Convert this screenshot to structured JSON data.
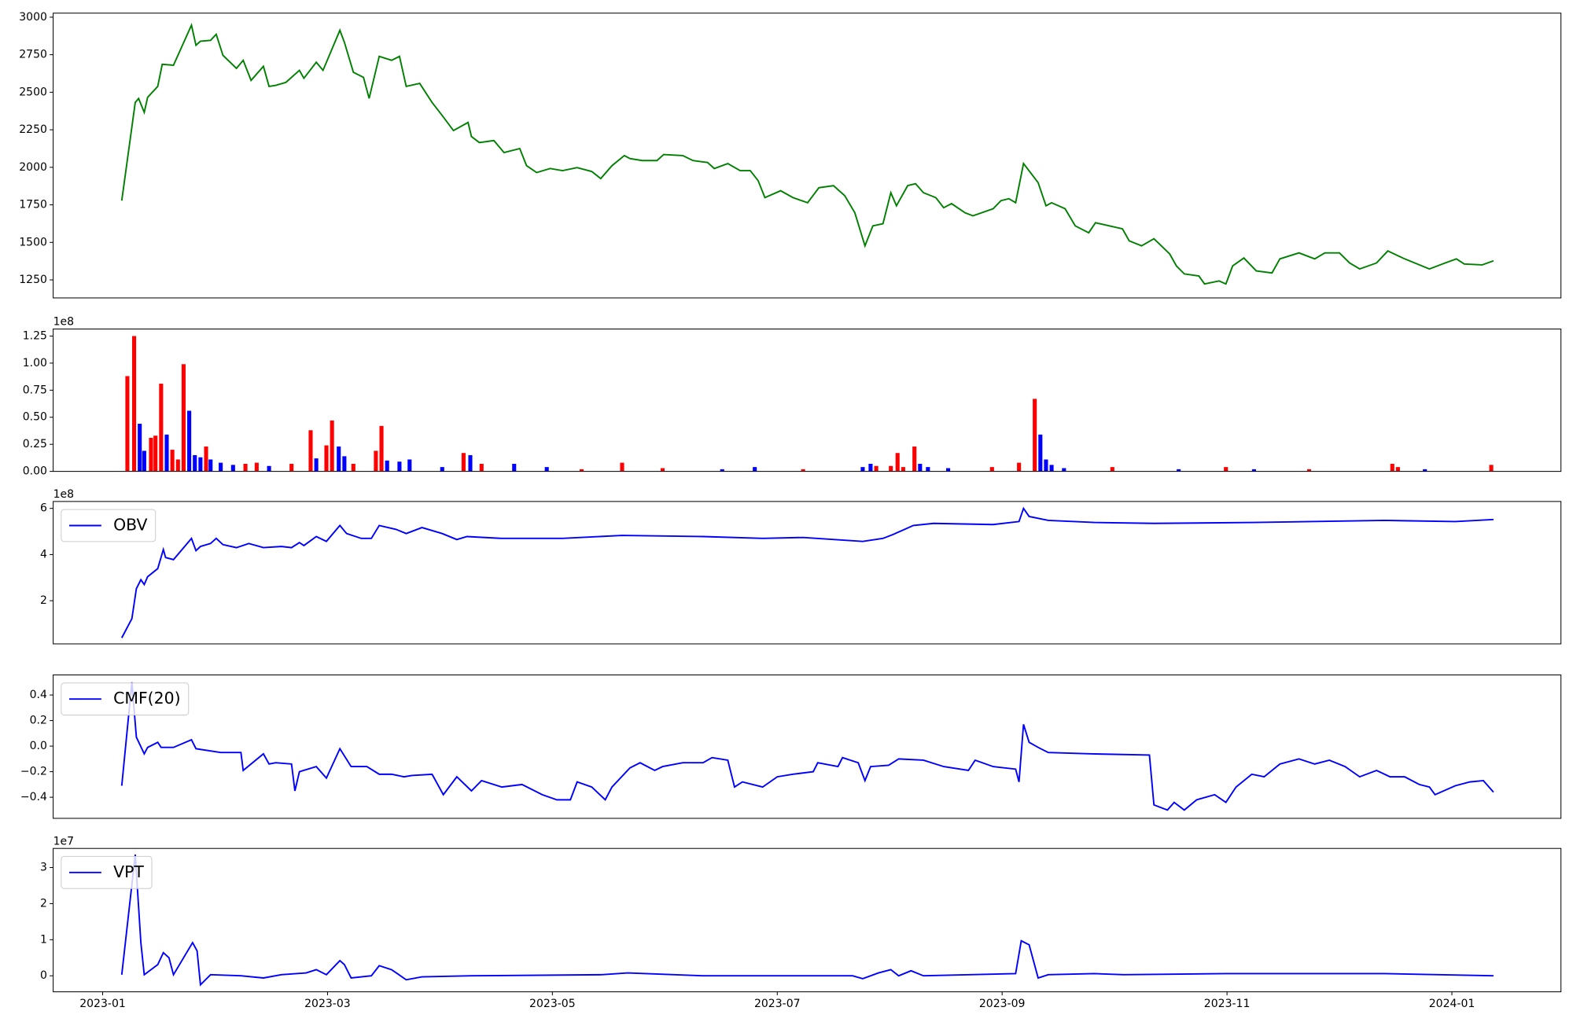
{
  "chart_data": [
    {
      "type": "line",
      "xlim": [
        -0.44,
        12.97
      ],
      "ylim": [
        1130,
        3027
      ],
      "yticks": [
        1250,
        1500,
        1750,
        2000,
        2250,
        2500,
        2750,
        3000
      ],
      "x": [
        0.17,
        0.29,
        0.32,
        0.37,
        0.4,
        0.49,
        0.53,
        0.63,
        0.79,
        0.83,
        0.87,
        0.96,
        1.01,
        1.07,
        1.19,
        1.25,
        1.32,
        1.43,
        1.48,
        1.54,
        1.63,
        1.75,
        1.79,
        1.9,
        1.96,
        2.11,
        2.15,
        2.23,
        2.32,
        2.37,
        2.46,
        2.57,
        2.64,
        2.7,
        2.82,
        2.93,
        3.02,
        3.12,
        3.25,
        3.28,
        3.35,
        3.48,
        3.57,
        3.71,
        3.77,
        3.86,
        3.98,
        4.09,
        4.22,
        4.35,
        4.43,
        4.53,
        4.64,
        4.69,
        4.8,
        4.93,
        4.99,
        5.16,
        5.25,
        5.38,
        5.44,
        5.56,
        5.67,
        5.76,
        5.83,
        5.89,
        6.03,
        6.14,
        6.27,
        6.37,
        6.5,
        6.6,
        6.69,
        6.78,
        6.85,
        6.94,
        7.01,
        7.06,
        7.16,
        7.23,
        7.3,
        7.41,
        7.48,
        7.55,
        7.67,
        7.74,
        7.92,
        7.99,
        8.06,
        8.12,
        8.19,
        8.32,
        8.39,
        8.44,
        8.56,
        8.65,
        8.77,
        8.83,
        9.07,
        9.13,
        9.24,
        9.35,
        9.49,
        9.55,
        9.62,
        9.75,
        9.8,
        9.93,
        9.99,
        10.05,
        10.15,
        10.26,
        10.4,
        10.47,
        10.64,
        10.78,
        10.87,
        11.0,
        11.09,
        11.18,
        11.33,
        11.43,
        11.58,
        11.8,
        11.94,
        12.04,
        12.11,
        12.27,
        12.37
      ],
      "series": [
        {
          "color": "#008000",
          "values": [
            1778,
            2432,
            2459,
            2366,
            2466,
            2539,
            2686,
            2680,
            2947,
            2813,
            2840,
            2846,
            2886,
            2746,
            2659,
            2713,
            2579,
            2673,
            2539,
            2546,
            2566,
            2646,
            2593,
            2700,
            2646,
            2913,
            2833,
            2633,
            2599,
            2459,
            2739,
            2713,
            2739,
            2539,
            2559,
            2432,
            2345,
            2245,
            2299,
            2205,
            2165,
            2178,
            2098,
            2125,
            2011,
            1965,
            1992,
            1978,
            1998,
            1972,
            1925,
            2011,
            2078,
            2058,
            2045,
            2045,
            2085,
            2078,
            2045,
            2032,
            1992,
            2025,
            1978,
            1978,
            1911,
            1798,
            1844,
            1798,
            1764,
            1864,
            1878,
            1811,
            1697,
            1477,
            1610,
            1624,
            1831,
            1744,
            1878,
            1891,
            1831,
            1798,
            1731,
            1758,
            1697,
            1677,
            1724,
            1778,
            1791,
            1764,
            2025,
            1898,
            1744,
            1764,
            1724,
            1610,
            1564,
            1631,
            1590,
            1510,
            1477,
            1524,
            1423,
            1343,
            1290,
            1276,
            1223,
            1243,
            1223,
            1343,
            1396,
            1310,
            1296,
            1390,
            1430,
            1390,
            1430,
            1430,
            1363,
            1323,
            1363,
            1443,
            1390,
            1323,
            1363,
            1390,
            1356,
            1350,
            1377
          ]
        }
      ]
    },
    {
      "type": "bar",
      "offset_text": "1e8",
      "xlim": [
        -0.44,
        12.97
      ],
      "ylim": [
        0,
        131500000
      ],
      "yticks": [
        {
          "value": 0,
          "label": "0.00"
        },
        {
          "value": 25000000,
          "label": "0.25"
        },
        {
          "value": 50000000,
          "label": "0.50"
        },
        {
          "value": 75000000,
          "label": "0.75"
        },
        {
          "value": 100000000,
          "label": "1.00"
        },
        {
          "value": 125000000,
          "label": "1.25"
        }
      ],
      "x": [
        0.22,
        0.28,
        0.33,
        0.37,
        0.43,
        0.47,
        0.52,
        0.57,
        0.62,
        0.67,
        0.72,
        0.77,
        0.82,
        0.87,
        0.92,
        0.96,
        1.05,
        1.16,
        1.27,
        1.37,
        1.48,
        1.68,
        1.85,
        1.9,
        1.99,
        2.04,
        2.1,
        2.15,
        2.23,
        2.43,
        2.48,
        2.53,
        2.64,
        2.73,
        3.02,
        3.21,
        3.27,
        3.37,
        3.66,
        3.95,
        4.26,
        4.62,
        4.98,
        5.51,
        5.8,
        6.23,
        6.76,
        6.83,
        6.88,
        7.01,
        7.07,
        7.12,
        7.22,
        7.27,
        7.34,
        7.52,
        7.91,
        8.15,
        8.29,
        8.34,
        8.39,
        8.44,
        8.55,
        8.98,
        9.57,
        9.99,
        10.24,
        10.73,
        11.47,
        11.52,
        11.76,
        12.35
      ],
      "values": [
        88000000,
        125000000,
        44000000,
        19000000,
        31000000,
        33000000,
        81000000,
        34000000,
        20000000,
        11000000,
        99000000,
        56000000,
        15000000,
        13000000,
        23000000,
        11000000,
        8000000,
        6000000,
        7000000,
        8000000,
        5000000,
        7000000,
        38000000,
        12000000,
        24000000,
        47000000,
        23000000,
        14000000,
        7000000,
        19000000,
        42000000,
        10000000,
        9000000,
        11000000,
        4000000,
        17000000,
        15000000,
        7000000,
        7000000,
        4000000,
        2000000,
        8000000,
        3000000,
        2000000,
        4000000,
        2000000,
        4000000,
        7000000,
        5000000,
        5000000,
        17000000,
        4000000,
        23000000,
        7000000,
        4000000,
        3000000,
        4000000,
        8000000,
        67000000,
        34000000,
        11000000,
        6000000,
        3000000,
        4000000,
        2000000,
        4000000,
        2000000,
        2000000,
        7000000,
        4000000,
        2000000,
        6000000
      ],
      "colors": [
        "#ff0000",
        "#ff0000",
        "#0000ff",
        "#0000ff",
        "#ff0000",
        "#ff0000",
        "#ff0000",
        "#0000ff",
        "#ff0000",
        "#ff0000",
        "#ff0000",
        "#0000ff",
        "#0000ff",
        "#0000ff",
        "#ff0000",
        "#0000ff",
        "#0000ff",
        "#0000ff",
        "#ff0000",
        "#ff0000",
        "#0000ff",
        "#ff0000",
        "#ff0000",
        "#0000ff",
        "#ff0000",
        "#ff0000",
        "#0000ff",
        "#0000ff",
        "#ff0000",
        "#ff0000",
        "#ff0000",
        "#0000ff",
        "#0000ff",
        "#0000ff",
        "#0000ff",
        "#ff0000",
        "#0000ff",
        "#ff0000",
        "#0000ff",
        "#0000ff",
        "#ff0000",
        "#ff0000",
        "#ff0000",
        "#0000ff",
        "#0000ff",
        "#ff0000",
        "#0000ff",
        "#0000ff",
        "#ff0000",
        "#ff0000",
        "#ff0000",
        "#ff0000",
        "#ff0000",
        "#0000ff",
        "#0000ff",
        "#0000ff",
        "#ff0000",
        "#ff0000",
        "#ff0000",
        "#0000ff",
        "#0000ff",
        "#0000ff",
        "#0000ff",
        "#ff0000",
        "#0000ff",
        "#ff0000",
        "#0000ff",
        "#ff0000",
        "#ff0000",
        "#ff0000",
        "#0000ff",
        "#ff0000"
      ]
    },
    {
      "type": "line",
      "offset_text": "1e8",
      "legend": "upper left",
      "xlim": [
        -0.44,
        12.97
      ],
      "ylim": [
        13000000,
        630000000
      ],
      "yticks": [
        {
          "value": 200000000,
          "label": "2"
        },
        {
          "value": 400000000,
          "label": "4"
        },
        {
          "value": 600000000,
          "label": "6"
        }
      ],
      "x": [
        0.17,
        0.26,
        0.3,
        0.34,
        0.37,
        0.4,
        0.49,
        0.54,
        0.56,
        0.63,
        0.79,
        0.83,
        0.87,
        0.96,
        1.01,
        1.07,
        1.19,
        1.3,
        1.43,
        1.59,
        1.68,
        1.75,
        1.79,
        1.9,
        1.99,
        2.11,
        2.17,
        2.3,
        2.39,
        2.46,
        2.61,
        2.7,
        2.84,
        3.02,
        3.15,
        3.24,
        3.55,
        4.09,
        4.62,
        5.34,
        5.87,
        6.23,
        6.76,
        6.94,
        7.03,
        7.21,
        7.39,
        7.92,
        8.15,
        8.19,
        8.24,
        8.41,
        8.82,
        9.35,
        10.24,
        11.4,
        12.03,
        12.37
      ],
      "series": [
        {
          "name": "OBV",
          "color": "#0000ff",
          "values": [
            39000000,
            122000000,
            252000000,
            291000000,
            270000000,
            304000000,
            339000000,
            422000000,
            387000000,
            378000000,
            470000000,
            417000000,
            435000000,
            448000000,
            470000000,
            443000000,
            430000000,
            448000000,
            430000000,
            435000000,
            430000000,
            452000000,
            439000000,
            478000000,
            457000000,
            526000000,
            491000000,
            470000000,
            470000000,
            526000000,
            509000000,
            491000000,
            517000000,
            491000000,
            465000000,
            478000000,
            470000000,
            470000000,
            483000000,
            478000000,
            470000000,
            474000000,
            457000000,
            470000000,
            487000000,
            526000000,
            535000000,
            530000000,
            543000000,
            600000000,
            565000000,
            548000000,
            539000000,
            535000000,
            539000000,
            548000000,
            543000000,
            552000000
          ]
        }
      ]
    },
    {
      "type": "line",
      "legend": "upper left",
      "xlim": [
        -0.44,
        12.97
      ],
      "ylim": [
        -0.565,
        0.557
      ],
      "yticks": [
        {
          "value": -0.4,
          "label": "−0.4"
        },
        {
          "value": -0.2,
          "label": "−0.2"
        },
        {
          "value": 0,
          "label": "0.0"
        },
        {
          "value": 0.2,
          "label": "0.2"
        },
        {
          "value": 0.4,
          "label": "0.4"
        }
      ],
      "x": [
        0.17,
        0.26,
        0.3,
        0.37,
        0.4,
        0.49,
        0.52,
        0.63,
        0.79,
        0.83,
        1.05,
        1.23,
        1.25,
        1.43,
        1.48,
        1.54,
        1.68,
        1.71,
        1.75,
        1.9,
        1.99,
        2.11,
        2.21,
        2.35,
        2.46,
        2.57,
        2.68,
        2.75,
        2.93,
        3.03,
        3.15,
        3.28,
        3.37,
        3.55,
        3.73,
        3.91,
        4.04,
        4.16,
        4.22,
        4.35,
        4.47,
        4.53,
        4.69,
        4.78,
        4.91,
        4.98,
        5.16,
        5.34,
        5.42,
        5.56,
        5.62,
        5.69,
        5.87,
        6.0,
        6.14,
        6.32,
        6.36,
        6.54,
        6.58,
        6.72,
        6.78,
        6.83,
        6.99,
        7.08,
        7.3,
        7.48,
        7.7,
        7.76,
        7.92,
        8.12,
        8.15,
        8.19,
        8.24,
        8.32,
        8.41,
        8.77,
        9.31,
        9.35,
        9.47,
        9.53,
        9.62,
        9.73,
        9.89,
        9.99,
        10.08,
        10.22,
        10.33,
        10.47,
        10.64,
        10.78,
        10.91,
        11.05,
        11.18,
        11.33,
        11.45,
        11.58,
        11.71,
        11.8,
        11.85,
        12.03,
        12.16,
        12.28,
        12.37
      ],
      "series": [
        {
          "name": "CMF(20)",
          "color": "#0000ff",
          "values": [
            -0.31,
            0.5,
            0.07,
            -0.06,
            -0.01,
            0.03,
            -0.01,
            -0.01,
            0.05,
            -0.02,
            -0.05,
            -0.05,
            -0.19,
            -0.06,
            -0.14,
            -0.13,
            -0.14,
            -0.35,
            -0.2,
            -0.16,
            -0.25,
            -0.02,
            -0.16,
            -0.16,
            -0.22,
            -0.22,
            -0.24,
            -0.23,
            -0.22,
            -0.38,
            -0.24,
            -0.35,
            -0.27,
            -0.32,
            -0.3,
            -0.38,
            -0.42,
            -0.42,
            -0.28,
            -0.32,
            -0.42,
            -0.32,
            -0.17,
            -0.13,
            -0.19,
            -0.16,
            -0.13,
            -0.13,
            -0.09,
            -0.11,
            -0.32,
            -0.28,
            -0.32,
            -0.24,
            -0.22,
            -0.2,
            -0.13,
            -0.16,
            -0.09,
            -0.13,
            -0.27,
            -0.16,
            -0.15,
            -0.1,
            -0.11,
            -0.16,
            -0.19,
            -0.11,
            -0.16,
            -0.18,
            -0.28,
            0.17,
            0.03,
            -0.01,
            -0.05,
            -0.06,
            -0.07,
            -0.46,
            -0.5,
            -0.44,
            -0.5,
            -0.42,
            -0.38,
            -0.44,
            -0.32,
            -0.22,
            -0.24,
            -0.14,
            -0.1,
            -0.14,
            -0.11,
            -0.16,
            -0.24,
            -0.19,
            -0.24,
            -0.24,
            -0.3,
            -0.32,
            -0.38,
            -0.31,
            -0.28,
            -0.27,
            -0.36
          ]
        }
      ]
    },
    {
      "type": "line",
      "offset_text": "1e7",
      "legend": "upper left",
      "xlim": [
        -0.44,
        12.97
      ],
      "ylim": [
        -4440000,
        35300000
      ],
      "yticks": [
        0,
        {
          "value": 10000000,
          "label": "1"
        },
        {
          "value": 20000000,
          "label": "2"
        },
        {
          "value": 30000000,
          "label": "3"
        }
      ],
      "xticks": [
        {
          "value": 0,
          "label": "2023-01"
        },
        {
          "value": 2,
          "label": "2023-03"
        },
        {
          "value": 4,
          "label": "2023-05"
        },
        {
          "value": 6,
          "label": "2023-07"
        },
        {
          "value": 8,
          "label": "2023-09"
        },
        {
          "value": 10,
          "label": "2023-11"
        },
        {
          "value": 12,
          "label": "2024-01"
        }
      ],
      "x": [
        0.17,
        0.29,
        0.34,
        0.37,
        0.49,
        0.54,
        0.59,
        0.63,
        0.8,
        0.84,
        0.87,
        0.96,
        1.23,
        1.43,
        1.59,
        1.81,
        1.9,
        1.99,
        2.11,
        2.15,
        2.21,
        2.39,
        2.46,
        2.57,
        2.7,
        2.84,
        3.28,
        4.44,
        4.67,
        5.34,
        6.67,
        6.76,
        6.9,
        7.01,
        7.08,
        7.19,
        7.3,
        8.12,
        8.17,
        8.24,
        8.32,
        8.41,
        8.82,
        9.08,
        9.99,
        11.4,
        12.37
      ],
      "series": [
        {
          "name": "VPT",
          "color": "#0000ff",
          "values": [
            300000,
            33600000,
            9200000,
            300000,
            3100000,
            6400000,
            5000000,
            300000,
            9200000,
            6900000,
            -2500000,
            300000,
            0,
            -600000,
            300000,
            800000,
            1700000,
            300000,
            4200000,
            3100000,
            -600000,
            0,
            2800000,
            1700000,
            -1100000,
            -300000,
            0,
            300000,
            800000,
            0,
            0,
            -800000,
            800000,
            1700000,
            0,
            1400000,
            0,
            600000,
            9700000,
            8600000,
            -600000,
            300000,
            600000,
            300000,
            600000,
            600000,
            0
          ]
        }
      ]
    }
  ]
}
